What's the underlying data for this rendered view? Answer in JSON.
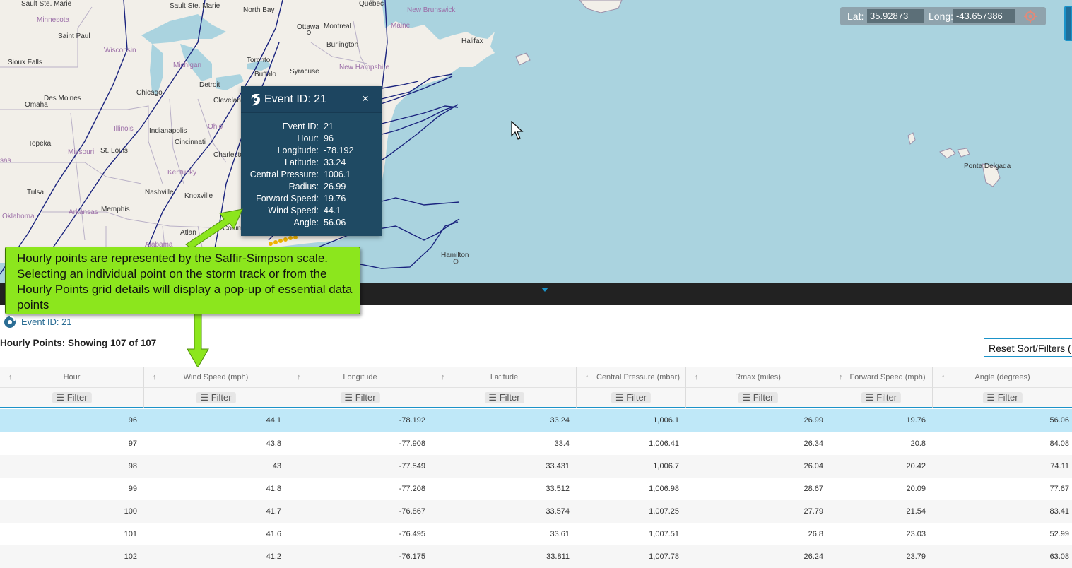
{
  "map": {
    "places": [
      {
        "name": "Sault Ste. Marie"
      },
      {
        "name": "North Bay"
      },
      {
        "name": "Québec"
      },
      {
        "name": "New Brunswick"
      },
      {
        "name": "Minnesota"
      },
      {
        "name": "Ottawa"
      },
      {
        "name": "Montreal"
      },
      {
        "name": "Maine"
      },
      {
        "name": "Saint Paul"
      },
      {
        "name": "Wisconsin"
      },
      {
        "name": "Toronto"
      },
      {
        "name": "Burlington"
      },
      {
        "name": "Halifax"
      },
      {
        "name": "Michigan"
      },
      {
        "name": "Sioux Falls"
      },
      {
        "name": "Buffalo"
      },
      {
        "name": "Syracuse"
      },
      {
        "name": "New Hampshire"
      },
      {
        "name": "Detroit"
      },
      {
        "name": "Des Moines"
      },
      {
        "name": "Chicago"
      },
      {
        "name": "Omaha"
      },
      {
        "name": "Clevelan"
      },
      {
        "name": "Illinois"
      },
      {
        "name": "Indianapolis"
      },
      {
        "name": "Ohio"
      },
      {
        "name": "Topeka"
      },
      {
        "name": "Cincinnati"
      },
      {
        "name": "Missouri"
      },
      {
        "name": "St. Louis"
      },
      {
        "name": "Charleston"
      },
      {
        "name": "Kentucky"
      },
      {
        "name": "Tulsa"
      },
      {
        "name": "Nashville"
      },
      {
        "name": "Knoxville"
      },
      {
        "name": "Oklahoma"
      },
      {
        "name": "Arkansas"
      },
      {
        "name": "Memphis"
      },
      {
        "name": "Atlan"
      },
      {
        "name": "Colum"
      },
      {
        "name": "Alabama"
      },
      {
        "name": "Hamilton"
      },
      {
        "name": "Ponta Delgada"
      },
      {
        "name": "sas"
      }
    ],
    "coords": {
      "lat_label": "Lat:",
      "lat_value": "35.92873",
      "long_label": "Long:",
      "long_value": "-43.657386"
    }
  },
  "popup": {
    "title": "Event ID: 21",
    "close": "×",
    "fields": [
      {
        "key": "Event ID:",
        "value": "21"
      },
      {
        "key": "Hour:",
        "value": "96"
      },
      {
        "key": "Longitude:",
        "value": "-78.192"
      },
      {
        "key": "Latitude:",
        "value": "33.24"
      },
      {
        "key": "Central Pressure:",
        "value": "1006.1"
      },
      {
        "key": "Radius:",
        "value": "26.99"
      },
      {
        "key": "Forward Speed:",
        "value": "19.76"
      },
      {
        "key": "Wind Speed:",
        "value": "44.1"
      },
      {
        "key": "Angle:",
        "value": "56.06"
      }
    ]
  },
  "callout": {
    "text": "Hourly points are represented by the Saffir-Simpson scale. Selecting an individual point on the storm track or from the Hourly Points grid details will display a pop-up of essential data points"
  },
  "panel": {
    "event_label": "Event ID: 21",
    "title": "Hourly Points: Showing 107 of 107",
    "reset_button": "Reset Sort/Filters (",
    "filter_label": "Filter",
    "sort_glyph": "↑"
  },
  "grid": {
    "columns": [
      "Hour",
      "Wind Speed (mph)",
      "Longitude",
      "Latitude",
      "Central Pressure (mbar)",
      "Rmax (miles)",
      "Forward Speed (mph)",
      "Angle (degrees)"
    ],
    "rows": [
      [
        "96",
        "44.1",
        "-78.192",
        "33.24",
        "1,006.1",
        "26.99",
        "19.76",
        "56.06"
      ],
      [
        "97",
        "43.8",
        "-77.908",
        "33.4",
        "1,006.41",
        "26.34",
        "20.8",
        "84.08"
      ],
      [
        "98",
        "43",
        "-77.549",
        "33.431",
        "1,006.7",
        "26.04",
        "20.42",
        "74.11"
      ],
      [
        "99",
        "41.8",
        "-77.208",
        "33.512",
        "1,006.98",
        "28.67",
        "20.09",
        "77.67"
      ],
      [
        "100",
        "41.7",
        "-76.867",
        "33.574",
        "1,007.25",
        "27.79",
        "21.54",
        "83.41"
      ],
      [
        "101",
        "41.6",
        "-76.495",
        "33.61",
        "1,007.51",
        "26.8",
        "23.03",
        "52.99"
      ],
      [
        "102",
        "41.2",
        "-76.175",
        "33.811",
        "1,007.78",
        "26.24",
        "23.79",
        "63.08"
      ]
    ],
    "selected_row": 0
  },
  "colors": {
    "accent": "#1b93c9",
    "callout": "#8ce61d",
    "popup": "#1f4a63",
    "track": "#1a237e",
    "water": "#aad3df",
    "land": "#f2efe9"
  }
}
